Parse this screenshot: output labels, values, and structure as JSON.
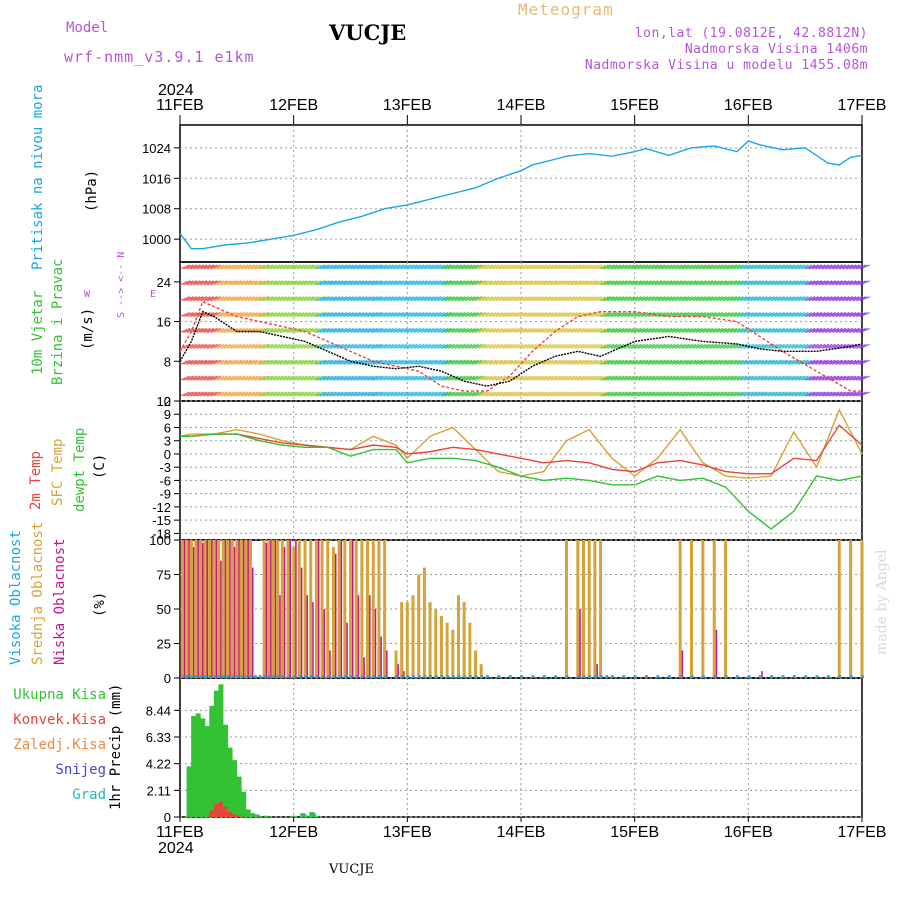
{
  "header": {
    "model_label": "Model",
    "model_value": "wrf-nmm_v3.9.1 e1km",
    "station": "VUCJE",
    "meteogram": "Meteogram",
    "coords": "lon,lat (19.0812E, 42.8812N)",
    "altitude": "Nadmorska Visina 1406m",
    "altitude_model": "Nadmorska Visina u modelu 1455.08m"
  },
  "time_axis": {
    "year": "2024",
    "ticks": [
      "11FEB",
      "12FEB",
      "13FEB",
      "14FEB",
      "15FEB",
      "16FEB",
      "17FEB"
    ]
  },
  "footer": {
    "station": "VUCJE",
    "credit": "made by Angel"
  },
  "colors": {
    "pressure": "#1aa7e6",
    "temp2m": "#e8443c",
    "sfc": "#d6a339",
    "dewpt": "#33c233",
    "high": "#1aa7e6",
    "mid": "#d6a339",
    "low": "#c2168f",
    "total": "#33c233",
    "conv": "#e8443c",
    "frz": "#f08a3c",
    "snow": "#4444dd",
    "grad": "#2ab5b5"
  },
  "panels": {
    "pressure": {
      "label": "Pritisak na nivou mora",
      "unit": "(hPa)"
    },
    "wind": {
      "label1": "10m Vjetar",
      "label2": "Brzina i Pravac",
      "unit": "(m/s)",
      "dir_w": "W",
      "dir_e": "E",
      "dir_n": "<-- N",
      "dir_s": "S -->"
    },
    "temp": {
      "label1": "2m Temp",
      "label2": "SFC Temp",
      "label3": "dewpt Temp",
      "unit": "(C)"
    },
    "cloud": {
      "label1": "Visoka Oblacnost",
      "label2": "Srednja Oblacnost",
      "label3": "Niska Oblacnost",
      "unit": "(%)"
    },
    "precip": {
      "label": "1hr Precip (mm)",
      "legend": [
        "Ukupna Kisa",
        "Konvek.Kisa",
        "Zaledj.Kisa",
        "Snijeg",
        "Grad"
      ]
    }
  },
  "chart_data": [
    {
      "type": "line",
      "panel": "pressure",
      "ylim": [
        994,
        1030
      ],
      "yticks": [
        "1000",
        "1008",
        "1016",
        "1024"
      ],
      "grid": true,
      "x_days": [
        0,
        0.05,
        0.1,
        0.2,
        0.4,
        0.6,
        0.8,
        1.0,
        1.2,
        1.4,
        1.6,
        1.8,
        2.0,
        2.2,
        2.4,
        2.6,
        2.8,
        3.0,
        3.1,
        3.3,
        3.4,
        3.6,
        3.8,
        4.0,
        4.1,
        4.3,
        4.5,
        4.7,
        4.9,
        5.0,
        5.1,
        5.3,
        5.5,
        5.7,
        5.8,
        5.9,
        6.0
      ],
      "series": [
        {
          "values": [
            1001.5,
            999.5,
            997.5,
            997.5,
            998.5,
            999,
            1000,
            1001,
            1002.5,
            1004.5,
            1006,
            1008,
            1009,
            1010.5,
            1012,
            1013.5,
            1016,
            1018,
            1019.5,
            1021,
            1021.8,
            1022.5,
            1021.8,
            1023,
            1023.8,
            1022,
            1024,
            1024.5,
            1023,
            1025.8,
            1024.8,
            1023.5,
            1024,
            1020,
            1019.5,
            1021.5,
            1022
          ]
        }
      ]
    },
    {
      "type": "line",
      "panel": "wind",
      "ylim": [
        0,
        28
      ],
      "yticks": [
        "0",
        "8",
        "16",
        "24"
      ],
      "grid": true,
      "x_days": [
        0,
        0.1,
        0.2,
        0.3,
        0.5,
        0.7,
        0.9,
        1.1,
        1.3,
        1.5,
        1.7,
        1.9,
        2.1,
        2.3,
        2.5,
        2.7,
        2.9,
        3.1,
        3.3,
        3.5,
        3.7,
        4.0,
        4.3,
        4.6,
        4.9,
        5.1,
        5.3,
        5.6,
        5.9,
        6.0
      ],
      "series": [
        {
          "name": "speed",
          "values": [
            8,
            12,
            18,
            17,
            14,
            14,
            13,
            12,
            10,
            8,
            7,
            6.5,
            7,
            6,
            4,
            3,
            4,
            7,
            9,
            10,
            9,
            12,
            13,
            12,
            11.5,
            10.5,
            10,
            10,
            11,
            11.5
          ]
        },
        {
          "name": "gust",
          "values": [
            10,
            14,
            20,
            19,
            17,
            16,
            15,
            14,
            12,
            10,
            8,
            7,
            6,
            3,
            2,
            2,
            5,
            10,
            14,
            17,
            18,
            18,
            17,
            17,
            16,
            13,
            10,
            6,
            2,
            2
          ]
        }
      ]
    },
    {
      "type": "line",
      "panel": "temp",
      "ylim": [
        -19.5,
        12
      ],
      "yticks": [
        "-18",
        "-15",
        "-12",
        "-9",
        "-6",
        "-3",
        "0",
        "3",
        "6",
        "9",
        "12"
      ],
      "grid": true,
      "x_days": [
        0,
        0.1,
        0.3,
        0.5,
        0.7,
        0.9,
        1.1,
        1.3,
        1.5,
        1.7,
        1.9,
        2.0,
        2.2,
        2.4,
        2.6,
        2.8,
        3.0,
        3.2,
        3.4,
        3.6,
        3.8,
        4.0,
        4.2,
        4.4,
        4.6,
        4.8,
        5.0,
        5.2,
        5.4,
        5.6,
        5.8,
        6.0
      ],
      "series": [
        {
          "name": "2m",
          "values": [
            4,
            4,
            4.5,
            4.5,
            3.5,
            2.5,
            2,
            1.5,
            1,
            2,
            1.5,
            0,
            0.5,
            1.5,
            1,
            0,
            -1,
            -2,
            -1.5,
            -2,
            -3.5,
            -4,
            -2,
            -1.5,
            -2.5,
            -4,
            -4.5,
            -4.5,
            -1,
            -1.5,
            6.5,
            2
          ]
        },
        {
          "name": "sfc",
          "values": [
            4,
            4.5,
            4.5,
            5.5,
            4.5,
            3,
            2,
            1.5,
            1,
            4,
            2,
            -1,
            4,
            6,
            1,
            -4,
            -5,
            -4,
            3,
            5.5,
            -1,
            -5,
            -1,
            5.5,
            -2,
            -5,
            -5.5,
            -5,
            5,
            -3,
            10,
            0
          ]
        },
        {
          "name": "dewpt",
          "values": [
            4,
            4,
            4.5,
            4.5,
            3,
            2,
            1.5,
            1.5,
            -0.5,
            1,
            1,
            -2,
            -1,
            -1,
            -1.5,
            -3,
            -5,
            -6,
            -5.5,
            -6,
            -7,
            -7,
            -5,
            -6,
            -5.5,
            -7.5,
            -13,
            -17,
            -13,
            -5,
            -6,
            -5
          ]
        }
      ]
    },
    {
      "type": "bar",
      "panel": "cloud",
      "ylim": [
        0,
        100
      ],
      "yticks": [
        "0",
        "25",
        "50",
        "75",
        "100"
      ],
      "grid": true,
      "x_days": [
        0.02,
        0.06,
        0.1,
        0.14,
        0.18,
        0.22,
        0.26,
        0.3,
        0.34,
        0.38,
        0.42,
        0.46,
        0.5,
        0.54,
        0.58,
        0.62,
        0.66,
        0.7,
        0.74,
        0.78,
        0.82,
        0.86,
        0.9,
        0.95,
        1.0,
        1.05,
        1.1,
        1.15,
        1.2,
        1.25,
        1.3,
        1.35,
        1.4,
        1.45,
        1.5,
        1.55,
        1.6,
        1.65,
        1.7,
        1.75,
        1.8,
        1.9,
        1.95,
        2.0,
        2.05,
        2.1,
        2.15,
        2.2,
        2.25,
        2.3,
        2.35,
        2.4,
        2.45,
        2.5,
        2.55,
        2.6,
        2.65,
        2.7,
        2.8,
        2.9,
        3.0,
        3.1,
        3.2,
        3.3,
        3.4,
        3.5,
        3.55,
        3.6,
        3.65,
        3.7,
        3.75,
        3.8,
        3.9,
        4.0,
        4.1,
        4.2,
        4.3,
        4.4,
        4.5,
        4.6,
        4.7,
        4.8,
        4.9,
        5.0,
        5.1,
        5.2,
        5.3,
        5.4,
        5.5,
        5.6,
        5.7,
        5.8,
        5.9,
        6.0
      ],
      "series": [
        {
          "name": "high",
          "values": [
            2,
            2,
            2,
            2,
            2,
            2,
            2,
            2,
            2,
            2,
            2,
            2,
            2,
            2,
            2,
            2,
            2,
            2,
            2,
            2,
            2,
            2,
            2,
            2,
            2,
            2,
            2,
            2,
            2,
            2,
            2,
            2,
            2,
            2,
            2,
            2,
            2,
            2,
            2,
            2,
            2,
            2,
            2,
            2,
            2,
            2,
            2,
            2,
            2,
            2,
            2,
            2,
            2,
            2,
            2,
            2,
            2,
            2,
            2,
            2,
            2,
            2,
            2,
            2,
            2,
            2,
            2,
            2,
            2,
            2,
            2,
            2,
            2,
            2,
            2,
            2,
            2,
            2,
            2,
            2,
            2,
            2,
            2,
            2,
            2,
            2,
            2,
            2,
            2,
            2,
            2,
            2,
            2,
            2
          ]
        },
        {
          "name": "mid",
          "values": [
            100,
            100,
            100,
            100,
            100,
            100,
            100,
            100,
            100,
            100,
            100,
            100,
            100,
            100,
            100,
            100,
            0,
            0,
            100,
            100,
            100,
            100,
            100,
            100,
            95,
            100,
            100,
            100,
            100,
            100,
            100,
            95,
            100,
            100,
            100,
            100,
            100,
            100,
            100,
            100,
            100,
            20,
            55,
            55,
            60,
            75,
            80,
            55,
            50,
            45,
            40,
            35,
            60,
            55,
            40,
            20,
            10,
            0,
            0,
            0,
            0,
            0,
            0,
            0,
            100,
            100,
            100,
            100,
            100,
            100,
            0,
            0,
            0,
            0,
            0,
            0,
            0,
            100,
            100,
            100,
            100,
            100,
            0,
            0,
            0,
            0,
            0,
            0,
            0,
            0,
            0,
            100,
            100,
            100
          ]
        },
        {
          "name": "low",
          "values": [
            100,
            100,
            95,
            100,
            98,
            100,
            100,
            100,
            85,
            100,
            100,
            95,
            100,
            100,
            100,
            80,
            0,
            0,
            98,
            100,
            100,
            60,
            95,
            100,
            100,
            80,
            60,
            55,
            100,
            50,
            20,
            90,
            100,
            40,
            100,
            60,
            15,
            60,
            50,
            30,
            20,
            10,
            5,
            0,
            0,
            0,
            0,
            0,
            0,
            0,
            0,
            0,
            0,
            0,
            0,
            0,
            0,
            0,
            0,
            0,
            0,
            0,
            0,
            0,
            0,
            50,
            0,
            0,
            10,
            0,
            0,
            0,
            0,
            0,
            0,
            0,
            0,
            20,
            0,
            0,
            35,
            0,
            0,
            0,
            5,
            0,
            0,
            0,
            0,
            0,
            0,
            0,
            0,
            0
          ]
        }
      ]
    },
    {
      "type": "bar",
      "panel": "precip",
      "ylim": [
        0,
        11
      ],
      "yticks": [
        "0",
        "2.11",
        "4.22",
        "6.33",
        "8.44"
      ],
      "grid": true,
      "x_days": [
        0.08,
        0.12,
        0.16,
        0.2,
        0.24,
        0.28,
        0.32,
        0.36,
        0.4,
        0.44,
        0.48,
        0.52,
        0.56,
        0.6,
        0.64,
        0.68,
        0.72,
        0.76,
        0.8,
        0.84,
        0.88,
        0.92,
        0.96,
        1.0,
        1.04,
        1.08,
        1.12,
        1.16,
        1.2
      ],
      "series": [
        {
          "name": "total",
          "values": [
            4,
            8,
            8.2,
            7.8,
            7.2,
            8.8,
            10,
            10.5,
            7.3,
            5.5,
            4.5,
            3.2,
            2,
            0.6,
            0.3,
            0.2,
            0,
            0.1,
            0,
            0,
            0,
            0,
            0,
            0.1,
            0,
            0.3,
            0.1,
            0.4,
            0.1
          ]
        },
        {
          "name": "conv",
          "values": [
            0,
            0,
            0,
            0,
            0,
            0.5,
            1,
            1.2,
            0.8,
            0.4,
            0.2,
            0.1,
            0,
            0,
            0,
            0,
            0,
            0,
            0,
            0,
            0,
            0,
            0,
            0,
            0,
            0,
            0,
            0,
            0
          ]
        },
        {
          "name": "grad",
          "values": [
            0,
            0,
            0,
            0,
            0,
            0,
            0,
            0,
            0,
            0,
            0,
            0,
            0,
            0,
            0,
            0,
            0,
            0,
            0,
            0,
            0,
            0,
            0,
            0,
            0,
            0.2,
            0,
            0.3,
            0
          ]
        }
      ]
    }
  ]
}
